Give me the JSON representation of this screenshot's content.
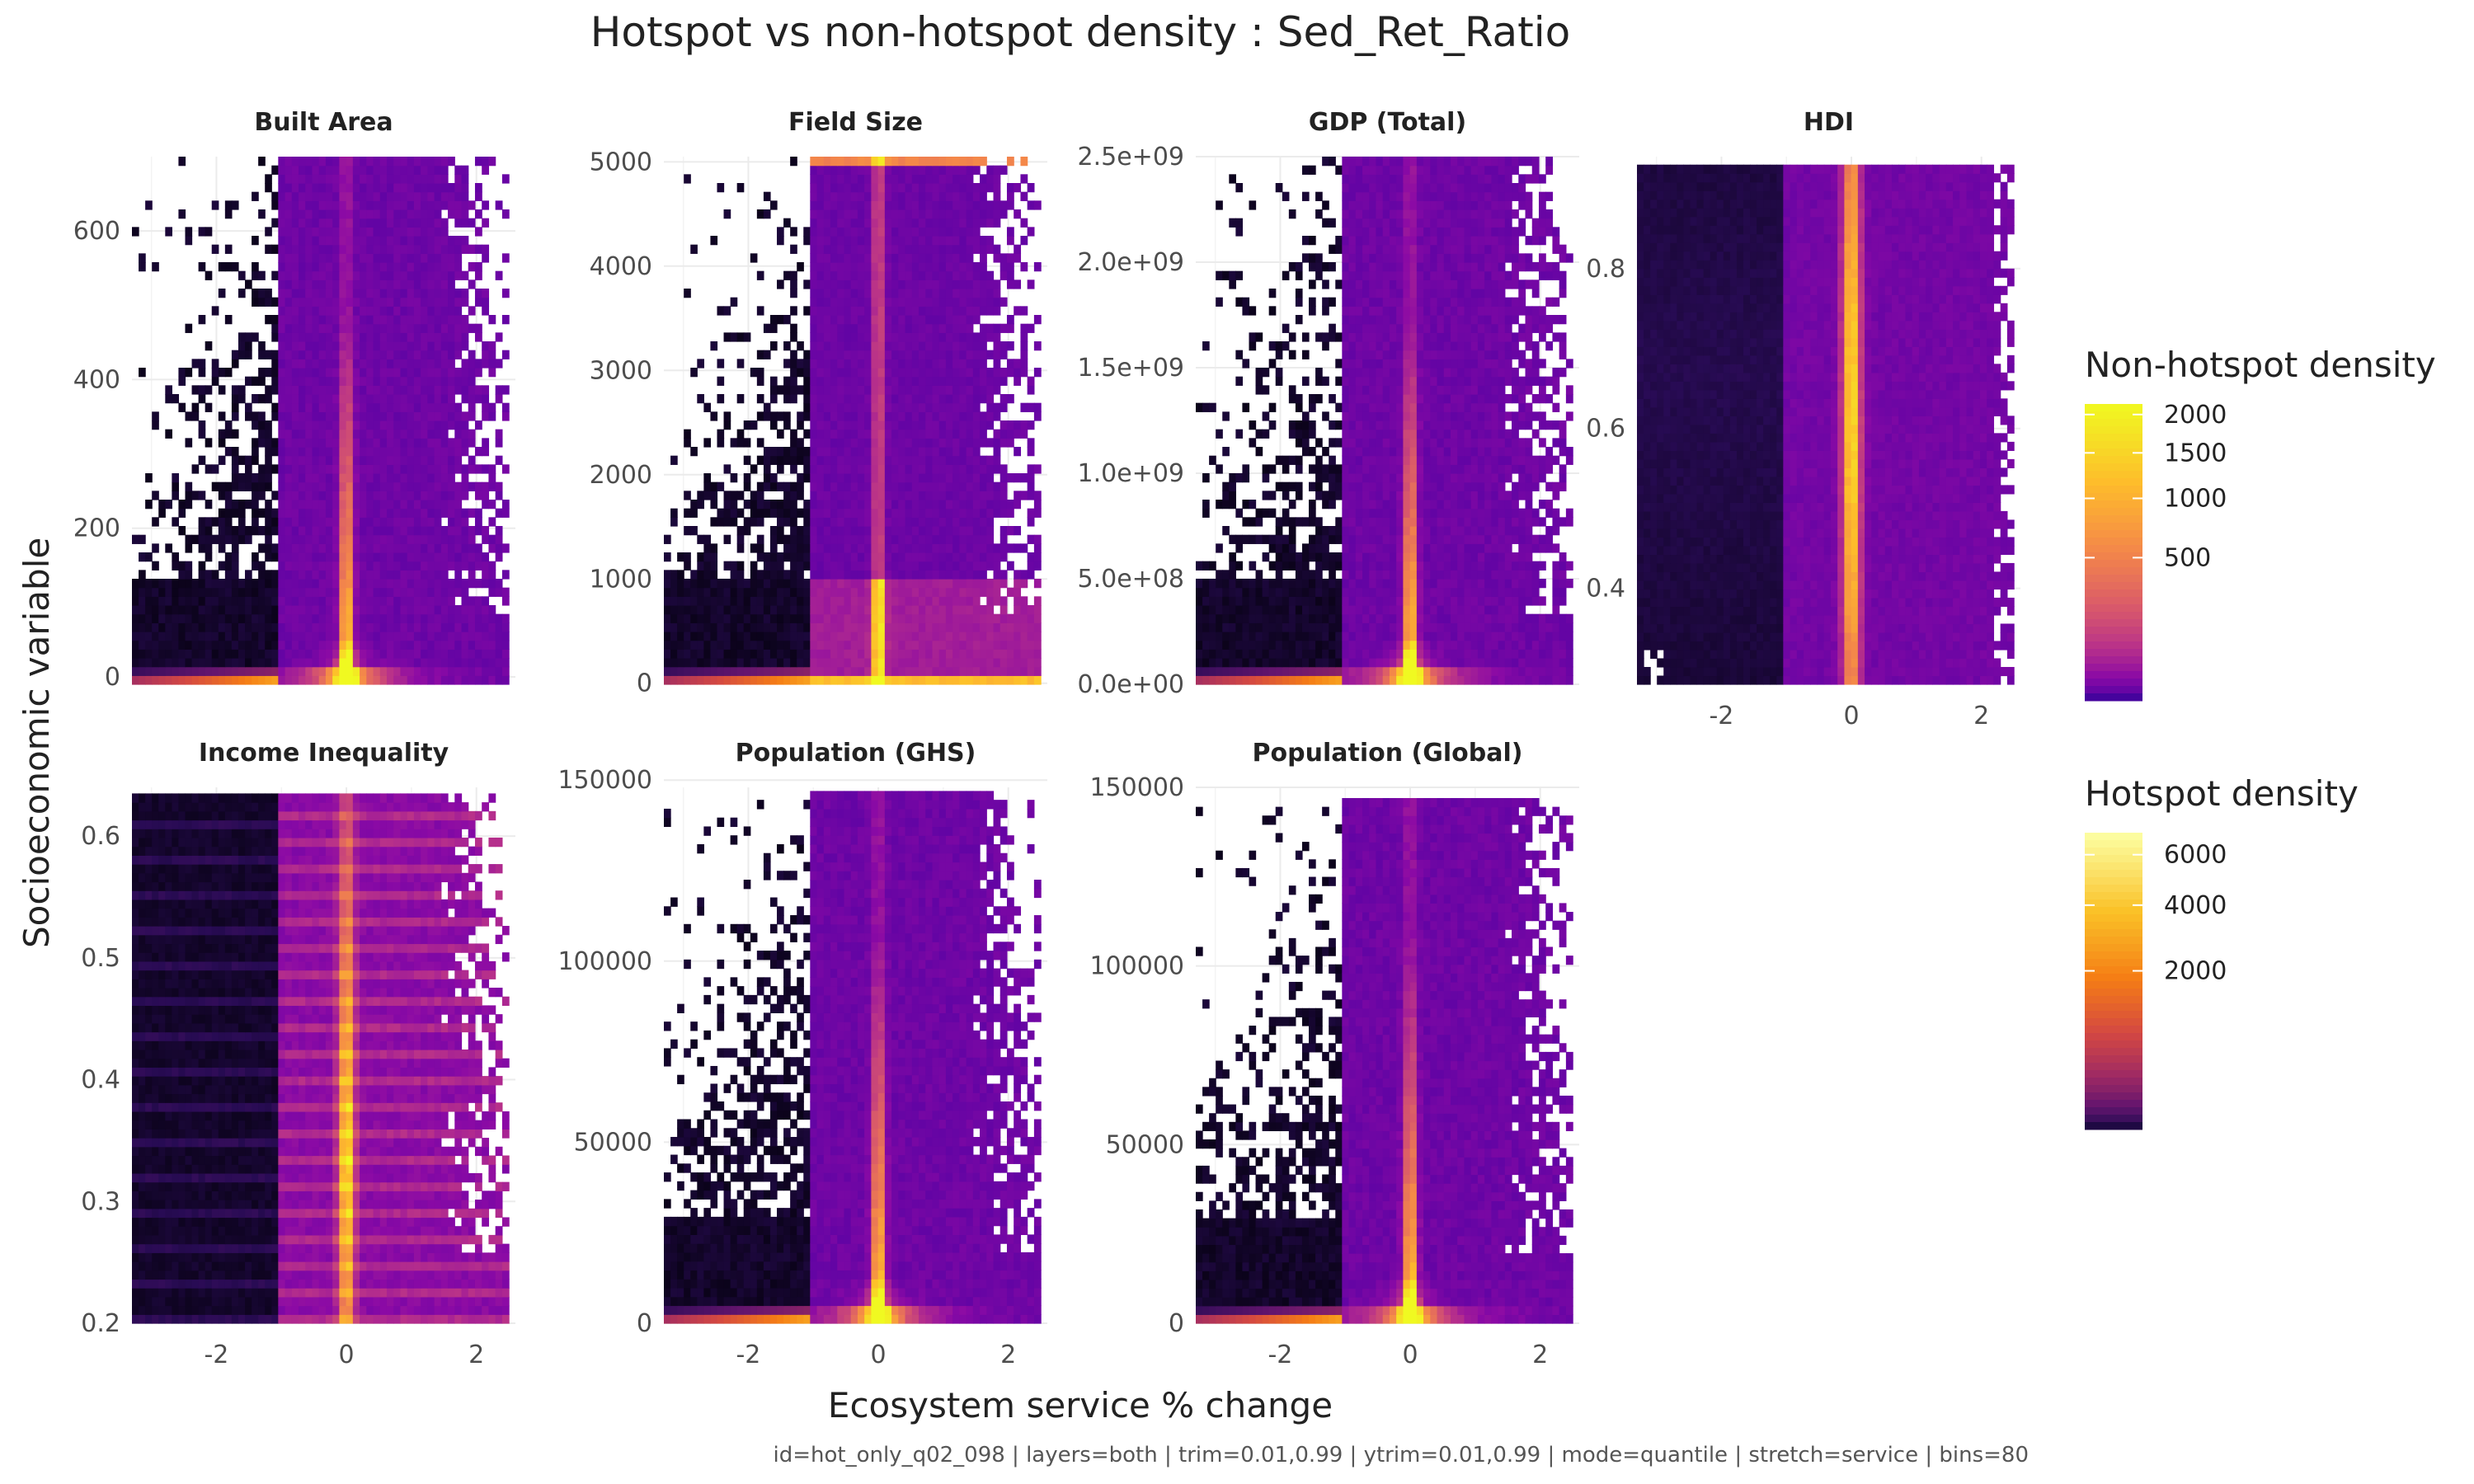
{
  "title": "Hotspot vs non-hotspot density : Sed_Ret_Ratio",
  "caption": "id=hot_only_q02_098 | layers=both | trim=0.01,0.99 | ytrim=0.01,0.99 | mode=quantile | stretch=service | bins=80",
  "chart_data": {
    "type": "heatmap",
    "title": "Hotspot vs non-hotspot density : Sed_Ret_Ratio",
    "xlabel": "Ecosystem service % change",
    "ylabel": "Socioeconomic variable",
    "xlim": [
      -3.3,
      2.6
    ],
    "x_ticks": [
      -2,
      0,
      2
    ],
    "hotspot_x_range": [
      -3.3,
      -1.05
    ],
    "nonhotspot_x_range": [
      -1.05,
      2.5
    ],
    "bins": 80,
    "panels": [
      {
        "name": "Built Area",
        "ylim": [
          -10,
          700
        ],
        "y_ticks": [
          0,
          200,
          400,
          600
        ],
        "y_tick_labels": [
          "0",
          "200",
          "400",
          "600"
        ],
        "data_ymax": 700,
        "center_kind": "bottom"
      },
      {
        "name": "Field Size",
        "ylim": [
          -10,
          5050
        ],
        "y_ticks": [
          0,
          1000,
          2000,
          3000,
          4000,
          5000
        ],
        "y_tick_labels": [
          "0",
          "1000",
          "2000",
          "3000",
          "4000",
          "5000"
        ],
        "data_ymax": 5050,
        "center_kind": "field"
      },
      {
        "name": "GDP (Total)",
        "ylim": [
          0,
          2500000000
        ],
        "y_ticks": [
          0,
          500000000,
          1000000000,
          1500000000,
          2000000000,
          2500000000
        ],
        "y_tick_labels": [
          "0.0e+00",
          "5.0e+08",
          "1.0e+09",
          "1.5e+09",
          "2.0e+09",
          "2.5e+09"
        ],
        "data_ymax": 2500000000,
        "center_kind": "bottom"
      },
      {
        "name": "HDI",
        "ylim": [
          0.28,
          0.94
        ],
        "y_ticks": [
          0.4,
          0.6,
          0.8
        ],
        "y_tick_labels": [
          "0.4",
          "0.6",
          "0.8"
        ],
        "data_ymax": 0.93,
        "center_kind": "uniform"
      },
      {
        "name": "Income Inequality",
        "ylim": [
          0.2,
          0.64
        ],
        "y_ticks": [
          0.2,
          0.3,
          0.4,
          0.5,
          0.6
        ],
        "y_tick_labels": [
          "0.2",
          "0.3",
          "0.4",
          "0.5",
          "0.6"
        ],
        "data_ymax": 0.635,
        "center_kind": "banded"
      },
      {
        "name": "Population (GHS)",
        "ylim": [
          0,
          148000
        ],
        "y_ticks": [
          0,
          50000,
          100000,
          150000
        ],
        "y_tick_labels": [
          "0",
          "50000",
          "100000",
          "150000"
        ],
        "data_ymax": 147000,
        "center_kind": "bottom"
      },
      {
        "name": "Population (Global)",
        "ylim": [
          0,
          150000
        ],
        "y_ticks": [
          0,
          50000,
          100000,
          150000
        ],
        "y_tick_labels": [
          "0",
          "50000",
          "100000",
          "150000"
        ],
        "data_ymax": 147000,
        "center_kind": "bottom"
      }
    ],
    "legends": [
      {
        "title": "Non-hotspot density",
        "palette": "plasma",
        "range": [
          0,
          2150
        ],
        "breaks": [
          500,
          1000,
          1500,
          2000
        ],
        "break_labels": [
          "500",
          "1000",
          "1500",
          "2000"
        ]
      },
      {
        "title": "Hotspot density",
        "palette": "inferno",
        "range": [
          0,
          7000
        ],
        "breaks": [
          2000,
          4000,
          6000
        ],
        "break_labels": [
          "2000",
          "4000",
          "6000"
        ]
      }
    ]
  }
}
